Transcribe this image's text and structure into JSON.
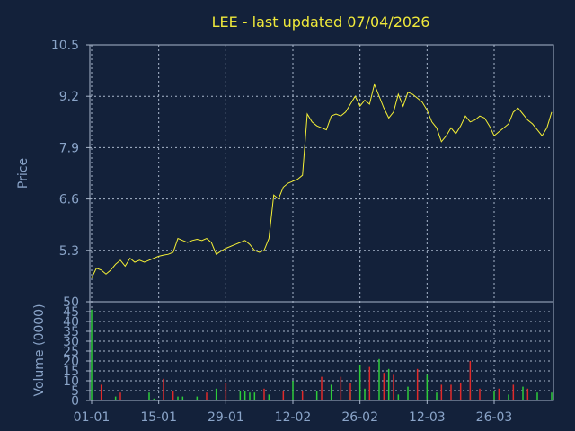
{
  "colors": {
    "background": "#13213a",
    "title": "#f0e93a",
    "axis_text": "#8aa4c8",
    "price_line": "#f5f036",
    "grid": "#aab8cc",
    "volume_up": "#2ecc3a",
    "volume_down": "#e02a2a"
  },
  "chart_data": [
    {
      "type": "line",
      "title": "LEE - last updated 07/04/2026",
      "ylabel": "Price",
      "ylim": [
        4.0,
        10.5
      ],
      "yticks": [
        "10.5",
        "9.2",
        "7.9",
        "6.6",
        "5.3"
      ],
      "ytick_values": [
        10.5,
        9.2,
        7.9,
        6.6,
        5.3
      ],
      "grid": true,
      "series": [
        {
          "x": [
            0,
            1,
            2,
            3,
            4,
            5,
            6,
            7,
            8,
            9,
            10,
            11,
            12,
            13,
            14,
            15,
            16,
            17,
            18,
            19,
            20,
            21,
            22,
            23,
            24,
            25,
            26,
            27,
            28,
            29,
            30,
            31,
            32,
            33,
            34,
            35,
            36,
            37,
            38,
            39,
            40,
            41,
            42,
            43,
            44,
            45,
            46,
            47,
            48,
            49,
            50,
            51,
            52,
            53,
            54,
            55,
            56,
            57,
            58,
            59,
            60,
            61,
            62,
            63,
            64,
            65,
            66,
            67,
            68,
            69,
            70,
            71,
            72,
            73,
            74,
            75,
            76,
            77,
            78,
            79,
            80,
            81,
            82,
            83,
            84,
            85,
            86,
            87,
            88,
            89,
            90,
            91,
            92,
            93,
            94,
            95,
            96
          ],
          "values": [
            4.6,
            4.85,
            4.8,
            4.7,
            4.8,
            4.95,
            5.05,
            4.9,
            5.1,
            5.0,
            5.05,
            5.0,
            5.05,
            5.1,
            5.15,
            5.18,
            5.2,
            5.25,
            5.6,
            5.55,
            5.5,
            5.55,
            5.58,
            5.55,
            5.6,
            5.5,
            5.2,
            5.28,
            5.35,
            5.4,
            5.45,
            5.5,
            5.55,
            5.45,
            5.3,
            5.25,
            5.3,
            5.6,
            6.7,
            6.6,
            6.9,
            7.0,
            7.05,
            7.1,
            7.2,
            8.75,
            8.55,
            8.45,
            8.4,
            8.35,
            8.7,
            8.75,
            8.7,
            8.8,
            9.0,
            9.2,
            8.95,
            9.1,
            9.0,
            9.5,
            9.2,
            8.9,
            8.65,
            8.8,
            9.25,
            8.95,
            9.3,
            9.25,
            9.15,
            9.05,
            8.85,
            8.55,
            8.4,
            8.05,
            8.2,
            8.4,
            8.25,
            8.45,
            8.7,
            8.55,
            8.6,
            8.7,
            8.65,
            8.45,
            8.2,
            8.3,
            8.4,
            8.5,
            8.8,
            8.9,
            8.75,
            8.6,
            8.5,
            8.35,
            8.2,
            8.4,
            8.8
          ]
        }
      ]
    },
    {
      "type": "bar",
      "ylabel": "Volume (0000)",
      "ylim": [
        0,
        50
      ],
      "yticks": [
        "50",
        "45",
        "40",
        "35",
        "30",
        "25",
        "20",
        "15",
        "10",
        "5",
        "0"
      ],
      "ytick_values": [
        50,
        45,
        40,
        35,
        30,
        25,
        20,
        15,
        10,
        5,
        0
      ],
      "xtick_labels": [
        "01-01",
        "15-01",
        "29-01",
        "12-02",
        "26-02",
        "12-03",
        "26-03"
      ],
      "xtick_positions": [
        0,
        14,
        28,
        42,
        56,
        70,
        84
      ],
      "x_range": [
        0,
        96
      ],
      "grid": true,
      "series": [
        {
          "name": "up",
          "x": [
            0,
            5,
            12,
            13,
            18,
            19,
            22,
            26,
            31,
            32,
            33,
            34,
            37,
            42,
            47,
            50,
            54,
            56,
            57,
            60,
            62,
            64,
            66,
            70,
            72,
            79,
            84,
            87,
            90,
            93,
            96
          ],
          "values": [
            46,
            2,
            4,
            1,
            2,
            2,
            2,
            6,
            5,
            5,
            4,
            4,
            3,
            10,
            5,
            8,
            4,
            18,
            6,
            21,
            16,
            3,
            7,
            13,
            4,
            5,
            5,
            3,
            7,
            4,
            4
          ]
        },
        {
          "name": "down",
          "x": [
            2,
            6,
            15,
            17,
            24,
            28,
            36,
            40,
            44,
            48,
            52,
            54,
            58,
            61,
            63,
            68,
            73,
            75,
            77,
            79,
            81,
            85,
            88,
            91
          ],
          "values": [
            8,
            4,
            11,
            5,
            4,
            9,
            6,
            5,
            5,
            12,
            12,
            9,
            17,
            14,
            13,
            16,
            8,
            8,
            9,
            20,
            6,
            6,
            8,
            6
          ]
        }
      ]
    }
  ]
}
